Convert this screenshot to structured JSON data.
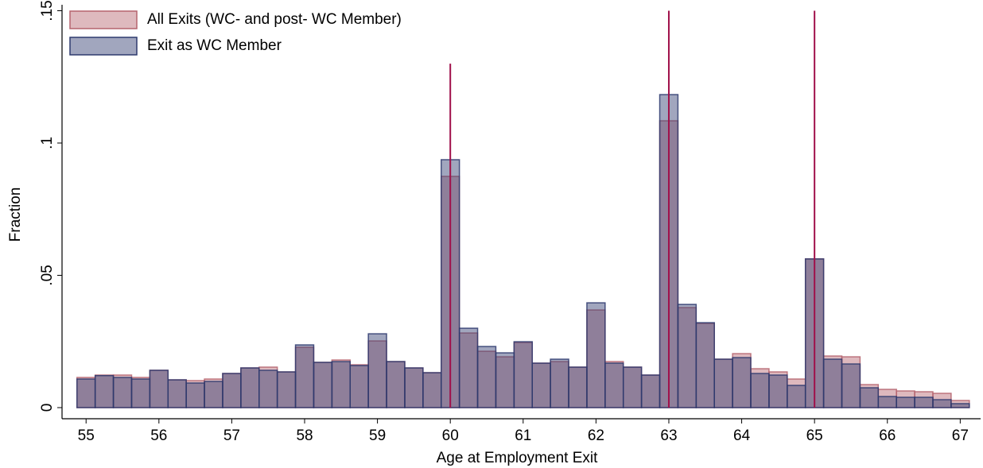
{
  "chart_data": {
    "type": "histogram",
    "xlabel": "Age at Employment Exit",
    "ylabel": "Fraction",
    "bins": [
      54.875,
      55.125,
      55.375,
      55.625,
      55.875,
      56.125,
      56.375,
      56.625,
      56.875,
      57.125,
      57.375,
      57.625,
      57.875,
      58.125,
      58.375,
      58.625,
      58.875,
      59.125,
      59.375,
      59.625,
      59.875,
      60.125,
      60.375,
      60.625,
      60.875,
      61.125,
      61.375,
      61.625,
      61.875,
      62.125,
      62.375,
      62.625,
      62.875,
      63.125,
      63.375,
      63.625,
      63.875,
      64.125,
      64.375,
      64.625,
      64.875,
      65.125,
      65.375,
      65.625,
      65.875,
      66.125,
      66.375,
      66.625,
      66.875,
      67.125
    ],
    "series": [
      {
        "name": "All Exits (WC- and post- WC Member)",
        "color": "#b5646e",
        "values": [
          0.0114,
          0.0123,
          0.0123,
          0.0114,
          0.0141,
          0.0105,
          0.0102,
          0.0108,
          0.0129,
          0.015,
          0.0153,
          0.0135,
          0.0228,
          0.0171,
          0.018,
          0.0162,
          0.0252,
          0.0174,
          0.015,
          0.0132,
          0.0874,
          0.0282,
          0.0213,
          0.0192,
          0.0246,
          0.0168,
          0.0174,
          0.0153,
          0.0369,
          0.0174,
          0.0153,
          0.0123,
          0.1084,
          0.0378,
          0.0318,
          0.0183,
          0.0204,
          0.0147,
          0.0135,
          0.0108,
          0.0562,
          0.0195,
          0.0192,
          0.0087,
          0.0069,
          0.0063,
          0.006,
          0.0054,
          0.0027
        ]
      },
      {
        "name": "Exit as WC Member",
        "color": "#2e3a6e",
        "values": [
          0.0108,
          0.0121,
          0.0114,
          0.0108,
          0.0141,
          0.0105,
          0.0093,
          0.0099,
          0.0129,
          0.015,
          0.0141,
          0.0135,
          0.0237,
          0.0171,
          0.0174,
          0.0159,
          0.0279,
          0.0174,
          0.015,
          0.0132,
          0.0937,
          0.03,
          0.0231,
          0.0207,
          0.0249,
          0.0168,
          0.0183,
          0.0153,
          0.0396,
          0.0168,
          0.0153,
          0.0123,
          0.1183,
          0.039,
          0.0321,
          0.0183,
          0.0189,
          0.0129,
          0.0123,
          0.0084,
          0.0562,
          0.0183,
          0.0165,
          0.0075,
          0.0042,
          0.0039,
          0.0039,
          0.003,
          0.0015
        ]
      }
    ],
    "vlines": [
      {
        "x": 60,
        "y": 0.13
      },
      {
        "x": 63,
        "y": 0.15
      },
      {
        "x": 65,
        "y": 0.15
      }
    ],
    "vline_color": "#a0104a",
    "xlim": [
      54.67,
      67.28
    ],
    "ylim": [
      0,
      0.15
    ],
    "xticks": [
      55,
      56,
      57,
      58,
      59,
      60,
      61,
      62,
      63,
      64,
      65,
      66,
      67
    ],
    "yticks": [
      0,
      {
        "value": 0.05,
        "label": ".05"
      },
      {
        "value": 0.1,
        "label": ".1"
      },
      {
        "value": 0.15,
        "label": ".15"
      }
    ],
    "legend": "top-left"
  }
}
